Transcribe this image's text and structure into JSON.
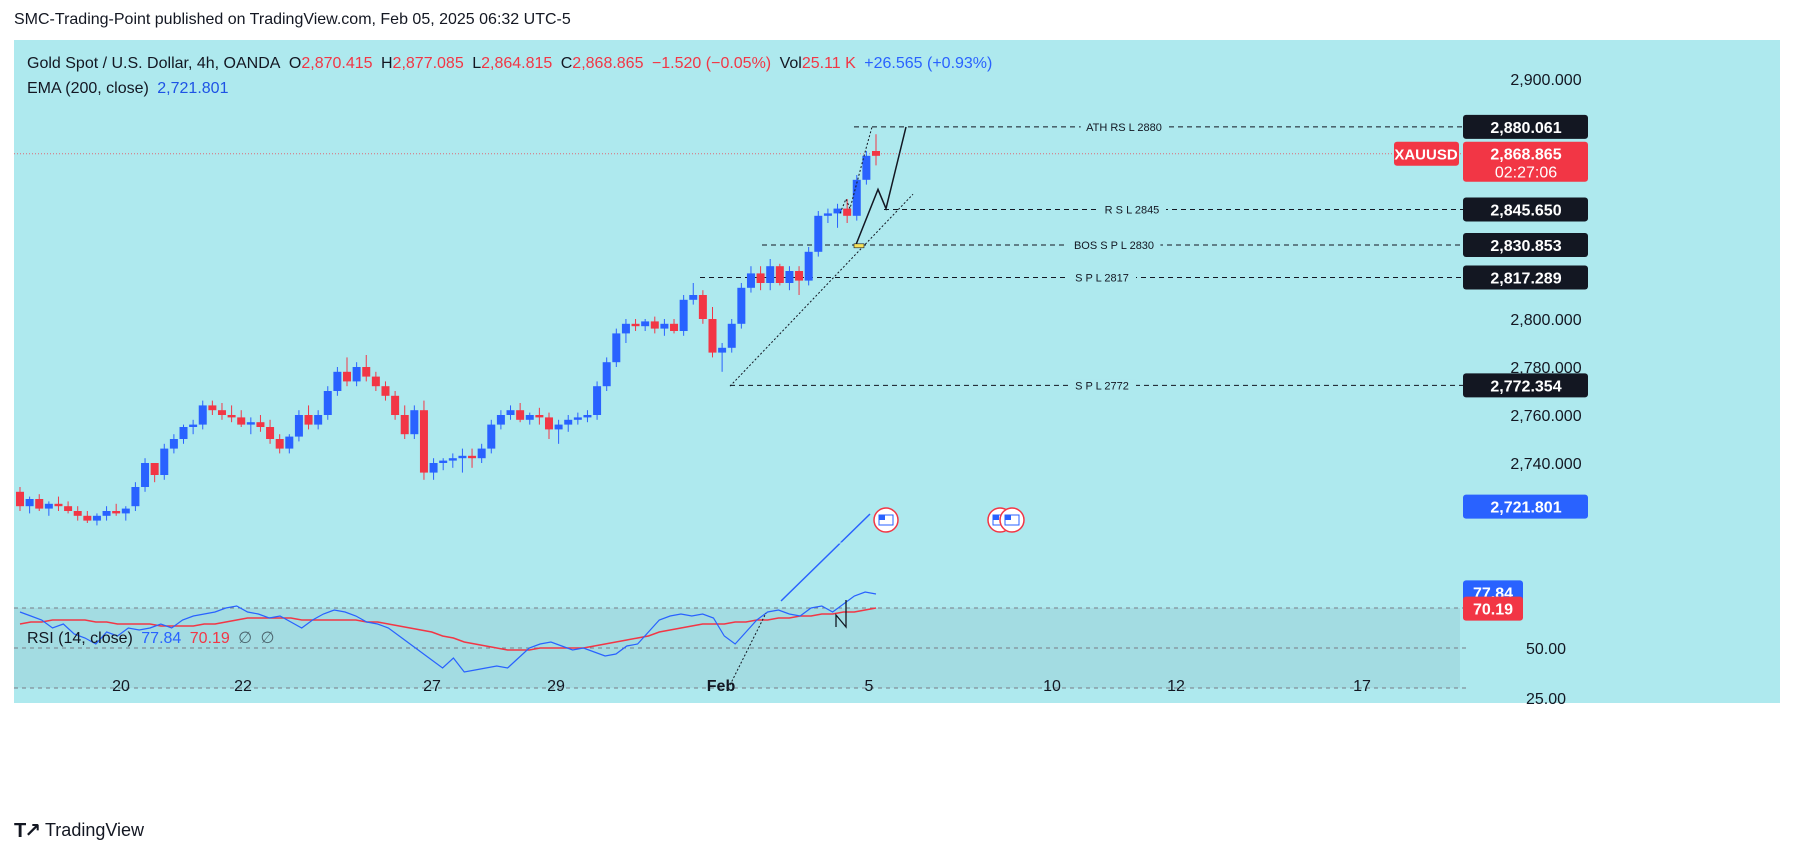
{
  "header": {
    "publisher_line": "SMC-Trading-Point published on TradingView.com, Feb 05, 2025 06:32 UTC-5"
  },
  "legend": {
    "symbol": "Gold Spot / U.S. Dollar, 4h, OANDA",
    "o_label": "O",
    "o_value": "2,870.415",
    "h_label": "H",
    "h_value": "2,877.085",
    "l_label": "L",
    "l_value": "2,864.815",
    "c_label": "C",
    "c_value": "2,868.865",
    "change": "−1.520 (−0.05%)",
    "vol_label": "Vol",
    "vol_value": "25.11 K",
    "vol_change": "+26.565 (+0.93%)",
    "ema_label": "EMA (200, close)",
    "ema_value": "2,721.801",
    "rsi_label": "RSI (14, close)",
    "rsi_value": "77.84",
    "rsi_ma_value": "70.19",
    "rsi_extra1": "∅",
    "rsi_extra2": "∅"
  },
  "colors": {
    "background": "#ffffff",
    "plot_bg": "#aee9ee",
    "up": "#2962ff",
    "down": "#f23645",
    "ema": "#2962ff",
    "rsi": "#2962ff",
    "rsi_ma": "#f23645",
    "rsi_band": "#a3dce2"
  },
  "footer": {
    "brand": "TradingView"
  },
  "chart_data": [
    {
      "type": "candlestick",
      "ylim": [
        2700,
        2910
      ],
      "y_ticks": [
        2740,
        2760,
        2780,
        2800,
        2900
      ],
      "y_tick_labels": [
        "2,740.000",
        "2,760.000",
        "2,780.000",
        "2,800.000",
        "2,900.000"
      ],
      "x_ticks": [
        "20",
        "22",
        "27",
        "29",
        "Feb",
        "5",
        "10",
        "12",
        "17"
      ],
      "candles": [
        [
          2728,
          2730,
          2720,
          2722
        ],
        [
          2722,
          2726,
          2719,
          2725
        ],
        [
          2725,
          2727,
          2720,
          2721
        ],
        [
          2721,
          2724,
          2718,
          2723
        ],
        [
          2723,
          2726,
          2720,
          2722
        ],
        [
          2722,
          2724,
          2719,
          2720
        ],
        [
          2720,
          2722,
          2716,
          2718
        ],
        [
          2718,
          2720,
          2715,
          2716
        ],
        [
          2716,
          2719,
          2714,
          2718
        ],
        [
          2718,
          2722,
          2716,
          2720
        ],
        [
          2720,
          2723,
          2718,
          2719
        ],
        [
          2719,
          2722,
          2716,
          2721
        ],
        [
          2722,
          2732,
          2720,
          2730
        ],
        [
          2730,
          2742,
          2728,
          2740
        ],
        [
          2740,
          2738,
          2732,
          2735
        ],
        [
          2735,
          2748,
          2733,
          2746
        ],
        [
          2746,
          2752,
          2744,
          2750
        ],
        [
          2750,
          2756,
          2748,
          2755
        ],
        [
          2755,
          2758,
          2752,
          2756
        ],
        [
          2756,
          2766,
          2754,
          2764
        ],
        [
          2764,
          2766,
          2760,
          2762
        ],
        [
          2762,
          2765,
          2758,
          2760
        ],
        [
          2760,
          2764,
          2757,
          2759
        ],
        [
          2759,
          2762,
          2755,
          2756
        ],
        [
          2756,
          2759,
          2752,
          2757
        ],
        [
          2757,
          2760,
          2753,
          2755
        ],
        [
          2755,
          2758,
          2748,
          2750
        ],
        [
          2750,
          2752,
          2744,
          2746
        ],
        [
          2746,
          2752,
          2744,
          2751
        ],
        [
          2751,
          2762,
          2749,
          2760
        ],
        [
          2760,
          2764,
          2754,
          2756
        ],
        [
          2756,
          2762,
          2754,
          2760
        ],
        [
          2760,
          2772,
          2758,
          2770
        ],
        [
          2770,
          2780,
          2768,
          2778
        ],
        [
          2778,
          2784,
          2772,
          2774
        ],
        [
          2774,
          2782,
          2772,
          2780
        ],
        [
          2780,
          2785,
          2774,
          2776
        ],
        [
          2776,
          2778,
          2770,
          2772
        ],
        [
          2772,
          2774,
          2766,
          2768
        ],
        [
          2768,
          2770,
          2758,
          2760
        ],
        [
          2760,
          2764,
          2750,
          2752
        ],
        [
          2752,
          2764,
          2750,
          2762
        ],
        [
          2762,
          2766,
          2733,
          2736
        ],
        [
          2736,
          2742,
          2733,
          2740
        ],
        [
          2740,
          2742,
          2737,
          2741
        ],
        [
          2741,
          2744,
          2738,
          2742
        ],
        [
          2742,
          2746,
          2736,
          2743
        ],
        [
          2743,
          2746,
          2738,
          2742
        ],
        [
          2742,
          2748,
          2740,
          2746
        ],
        [
          2746,
          2758,
          2744,
          2756
        ],
        [
          2756,
          2762,
          2754,
          2760
        ],
        [
          2760,
          2764,
          2758,
          2762
        ],
        [
          2762,
          2765,
          2757,
          2758
        ],
        [
          2758,
          2761,
          2756,
          2760
        ],
        [
          2760,
          2763,
          2756,
          2759
        ],
        [
          2759,
          2761,
          2750,
          2754
        ],
        [
          2754,
          2758,
          2748,
          2756
        ],
        [
          2756,
          2760,
          2753,
          2758
        ],
        [
          2758,
          2761,
          2756,
          2759
        ],
        [
          2759,
          2762,
          2757,
          2760
        ],
        [
          2760,
          2774,
          2758,
          2772
        ],
        [
          2772,
          2784,
          2770,
          2782
        ],
        [
          2782,
          2796,
          2780,
          2794
        ],
        [
          2794,
          2800,
          2790,
          2798
        ],
        [
          2798,
          2800,
          2795,
          2797
        ],
        [
          2797,
          2800,
          2795,
          2799
        ],
        [
          2799,
          2801,
          2794,
          2796
        ],
        [
          2796,
          2800,
          2793,
          2798
        ],
        [
          2798,
          2800,
          2794,
          2795
        ],
        [
          2795,
          2810,
          2793,
          2808
        ],
        [
          2808,
          2815,
          2806,
          2810
        ],
        [
          2810,
          2812,
          2798,
          2800
        ],
        [
          2800,
          2805,
          2784,
          2786
        ],
        [
          2786,
          2790,
          2778,
          2788
        ],
        [
          2788,
          2800,
          2786,
          2798
        ],
        [
          2798,
          2815,
          2796,
          2813
        ],
        [
          2813,
          2822,
          2811,
          2819
        ],
        [
          2819,
          2822,
          2812,
          2815
        ],
        [
          2815,
          2825,
          2812,
          2822
        ],
        [
          2822,
          2823,
          2814,
          2815
        ],
        [
          2815,
          2822,
          2812,
          2820
        ],
        [
          2820,
          2822,
          2810,
          2816
        ],
        [
          2816,
          2830,
          2814,
          2828
        ],
        [
          2828,
          2845,
          2826,
          2843
        ],
        [
          2843,
          2846,
          2840,
          2844
        ],
        [
          2844,
          2848,
          2838,
          2846
        ],
        [
          2846,
          2850,
          2840,
          2843
        ],
        [
          2843,
          2860,
          2841,
          2858
        ],
        [
          2858,
          2870,
          2856,
          2868
        ],
        [
          2870,
          2877,
          2864,
          2868
        ]
      ]
    },
    {
      "type": "line",
      "name": "EMA (200, close)",
      "last_value": 2721.801
    },
    {
      "type": "line",
      "x_ticks": [
        "20",
        "22",
        "27",
        "29",
        "Feb",
        "5",
        "10",
        "12",
        "17"
      ],
      "ylim": [
        20,
        85
      ],
      "y_ticks": [
        25,
        50
      ],
      "y_tick_labels": [
        "25.00",
        "50.00"
      ],
      "series": [
        {
          "name": "RSI",
          "values": [
            68,
            66,
            64,
            60,
            62,
            57,
            55,
            52,
            58,
            56,
            60,
            59,
            60,
            62,
            60,
            64,
            66,
            67,
            68,
            70,
            71,
            68,
            67,
            65,
            66,
            63,
            60,
            64,
            67,
            69,
            68,
            66,
            63,
            62,
            60,
            56,
            52,
            48,
            44,
            40,
            45,
            38,
            39,
            40,
            41,
            40,
            45,
            50,
            52,
            53,
            51,
            49,
            50,
            48,
            46,
            47,
            51,
            52,
            58,
            64,
            66,
            67,
            66,
            67,
            65,
            56,
            52,
            58,
            64,
            68,
            69,
            67,
            66,
            70,
            71,
            68,
            72,
            76,
            78,
            77
          ]
        },
        {
          "name": "RSI MA",
          "values": [
            62,
            63,
            63,
            64,
            64,
            64,
            64,
            63,
            63,
            62,
            62,
            62,
            62,
            61,
            61,
            61,
            61,
            62,
            62,
            63,
            64,
            65,
            65,
            65,
            65,
            65,
            64,
            64,
            64,
            64,
            64,
            64,
            63,
            63,
            62,
            61,
            60,
            59,
            58,
            56,
            55,
            53,
            52,
            51,
            50,
            49,
            49,
            49,
            50,
            50,
            50,
            50,
            50,
            51,
            52,
            53,
            54,
            55,
            56,
            58,
            59,
            60,
            61,
            62,
            62,
            62,
            63,
            63,
            64,
            64,
            65,
            65,
            66,
            66,
            67,
            67,
            68,
            68,
            69,
            70
          ]
        }
      ],
      "last_values": {
        "RSI": 77.84,
        "RSI MA": 70.19
      }
    }
  ],
  "price_labels": {
    "ath": "2,880.061",
    "current_symbol": "XAUUSD",
    "current": "2,868.865",
    "countdown": "02:27:06",
    "rsl": "2,845.650",
    "bos": "2,830.853",
    "spl_2817": "2,817.289",
    "spl_2772": "2,772.354",
    "ema": "2,721.801",
    "rsi": "77.84",
    "rsi_ma": "70.19"
  },
  "annotations": {
    "ath": "ATH RS L 2880",
    "rsl": "R S L 2845",
    "bos": "BOS S P L 2830",
    "spl_2817": "S P L 2817",
    "spl_2772": "S P L 2772"
  }
}
